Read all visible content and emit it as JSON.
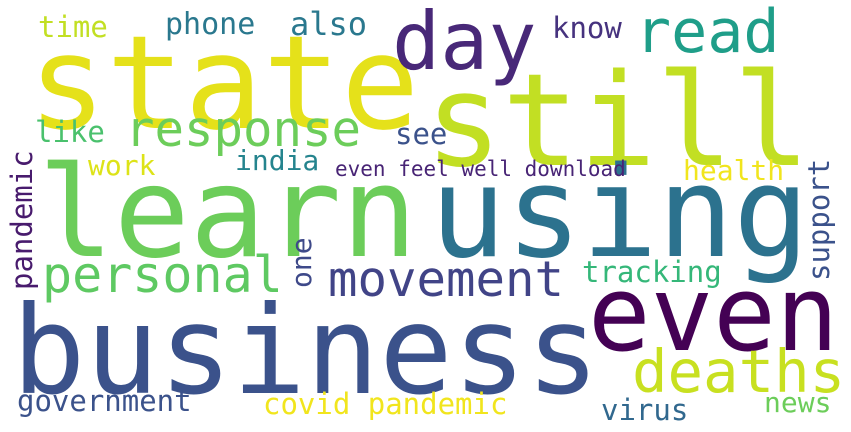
{
  "words": {
    "state": "state",
    "still": "still",
    "learn": "learn",
    "using": "using",
    "business": "business",
    "even": "even",
    "day": "day",
    "read": "read",
    "response": "response",
    "movement": "movement",
    "personal": "personal",
    "deaths": "deaths",
    "time": "time",
    "phone": "phone",
    "also": "also",
    "know": "know",
    "like": "like",
    "see": "see",
    "work": "work",
    "india": "india",
    "even_feel_well_download": "even feel well download",
    "health": "health",
    "support": "support",
    "pandemic": "pandemic",
    "one": "one",
    "tracking": "tracking",
    "government": "government",
    "covid_pandemic": "covid pandemic",
    "virus": "virus",
    "news": "news"
  },
  "colors": {
    "state": "#e5e11a",
    "still": "#c2df23",
    "learn": "#6ccd5a",
    "using": "#2c728e",
    "business": "#3b528b",
    "even": "#440154",
    "day": "#482878",
    "read": "#1f9e89",
    "response": "#6ccd5a",
    "movement": "#414487",
    "personal": "#5ec962",
    "deaths": "#c8e020",
    "time": "#c2df23",
    "phone": "#2a788e",
    "also": "#2a788e",
    "know": "#46327e",
    "like": "#4ac16d",
    "see": "#3b528b",
    "work": "#dde318",
    "india": "#25848e",
    "even_feel_well_download": "#482475",
    "health": "#f1e51d",
    "support": "#3b528b",
    "pandemic": "#481b6d",
    "one": "#3e4989",
    "tracking": "#35b779",
    "government": "#3b528b",
    "covid_pandemic": "#f1e51d",
    "virus": "#31688e",
    "news": "#6ccd5a"
  }
}
